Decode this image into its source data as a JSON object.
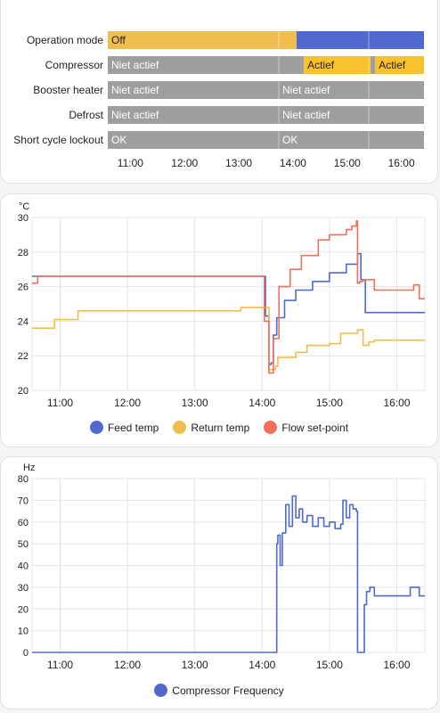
{
  "colors": {
    "off_yellow": "#f0bd4f",
    "blue": "#5069d1",
    "actief_yellow": "#f7c22b",
    "grey": "#9e9e9e",
    "feed": "#5069d1",
    "return": "#f0bd4f",
    "setpoint": "#f0705a",
    "frequency": "#5069d1",
    "grid": "#e4e4e4"
  },
  "timeline": {
    "x_range": [
      "10:35",
      "16:25"
    ],
    "ticks": [
      "11:00",
      "12:00",
      "13:00",
      "14:00",
      "15:00",
      "16:00"
    ],
    "rows": [
      {
        "label": "Operation mode",
        "segments": [
          {
            "start": "10:35",
            "end": "14:04",
            "state": "off_yellow",
            "text": "Off"
          },
          {
            "start": "14:04",
            "end": "16:25",
            "state": "blue",
            "text": ""
          }
        ]
      },
      {
        "label": "Compressor",
        "segments": [
          {
            "start": "10:35",
            "end": "14:12",
            "state": "grey",
            "text": "Niet actief"
          },
          {
            "start": "14:12",
            "end": "15:26",
            "state": "actief_yellow",
            "text": "Actief"
          },
          {
            "start": "15:26",
            "end": "15:31",
            "state": "grey",
            "text": ""
          },
          {
            "start": "15:31",
            "end": "16:25",
            "state": "actief_yellow",
            "text": "Actief"
          }
        ]
      },
      {
        "label": "Booster heater",
        "segments": [
          {
            "start": "10:35",
            "end": "16:25",
            "state": "grey",
            "text": "Niet actief",
            "text2": "Niet actief"
          }
        ]
      },
      {
        "label": "Defrost",
        "segments": [
          {
            "start": "10:35",
            "end": "16:25",
            "state": "grey",
            "text": "Niet actief",
            "text2": "Niet actief"
          }
        ]
      },
      {
        "label": "Short cycle lockout",
        "segments": [
          {
            "start": "10:35",
            "end": "16:25",
            "state": "grey",
            "text": "OK",
            "text2": "OK"
          }
        ]
      }
    ]
  },
  "chart_data": [
    {
      "type": "line",
      "unit": "°C",
      "ylim": [
        20,
        30
      ],
      "yticks": [
        20,
        22,
        24,
        26,
        28,
        30
      ],
      "xlim": [
        "10:35",
        "16:25"
      ],
      "xticks": [
        "11:00",
        "12:00",
        "13:00",
        "14:00",
        "15:00",
        "16:00"
      ],
      "grid": true,
      "legend": "bottom",
      "series": [
        {
          "name": "Feed temp",
          "color": "#5069d1",
          "x": [
            "10:35",
            "11:00",
            "12:00",
            "13:00",
            "13:58",
            "14:03",
            "14:06",
            "14:08",
            "14:10",
            "14:13",
            "14:20",
            "14:30",
            "14:45",
            "15:00",
            "15:15",
            "15:25",
            "15:28",
            "15:32",
            "15:36",
            "15:40",
            "16:00",
            "16:25"
          ],
          "y": [
            26.6,
            26.6,
            26.6,
            26.6,
            26.6,
            24.3,
            21.5,
            21.6,
            23.2,
            24.2,
            25.2,
            25.8,
            26.3,
            26.8,
            27.3,
            27.9,
            26.4,
            24.5,
            24.5,
            24.5,
            24.5,
            24.5
          ]
        },
        {
          "name": "Return temp",
          "color": "#f0bd4f",
          "x": [
            "10:35",
            "10:53",
            "10:55",
            "11:14",
            "11:16",
            "12:00",
            "13:00",
            "13:39",
            "13:41",
            "14:04",
            "14:06",
            "14:12",
            "14:14",
            "14:30",
            "14:40",
            "15:00",
            "15:10",
            "15:25",
            "15:30",
            "15:35",
            "15:40",
            "15:50",
            "16:00",
            "16:25"
          ],
          "y": [
            23.6,
            23.6,
            24.1,
            24.1,
            24.6,
            24.6,
            24.6,
            24.6,
            24.8,
            24.8,
            21.2,
            21.4,
            21.9,
            22.2,
            22.6,
            22.7,
            23.3,
            23.5,
            22.6,
            22.8,
            22.9,
            22.9,
            22.9,
            22.9
          ]
        },
        {
          "name": "Flow set-point",
          "color": "#f0705a",
          "x": [
            "10:35",
            "10:40",
            "11:00",
            "12:00",
            "12:15",
            "13:00",
            "13:58",
            "14:02",
            "14:06",
            "14:10",
            "14:15",
            "14:25",
            "14:35",
            "14:50",
            "15:00",
            "15:15",
            "15:20",
            "15:24",
            "15:25",
            "15:27",
            "15:30",
            "15:40",
            "16:00",
            "16:15",
            "16:20",
            "16:25"
          ],
          "y": [
            26.2,
            26.6,
            26.6,
            26.6,
            26.6,
            26.6,
            26.6,
            24.0,
            21.0,
            23.0,
            26.0,
            27.0,
            27.8,
            28.7,
            29.0,
            29.3,
            29.5,
            29.8,
            26.2,
            26.3,
            26.4,
            25.8,
            25.8,
            26.1,
            25.3,
            25.3
          ]
        }
      ]
    },
    {
      "type": "line",
      "unit": "Hz",
      "ylim": [
        0,
        80
      ],
      "yticks": [
        0,
        10,
        20,
        30,
        40,
        50,
        60,
        70,
        80
      ],
      "xlim": [
        "10:35",
        "16:25"
      ],
      "xticks": [
        "11:00",
        "12:00",
        "13:00",
        "14:00",
        "15:00",
        "16:00"
      ],
      "grid": true,
      "legend": "bottom",
      "series": [
        {
          "name": "Compressor Frequency",
          "color": "#5069d1",
          "x": [
            "10:35",
            "11:00",
            "12:00",
            "13:00",
            "14:00",
            "14:12",
            "14:13",
            "14:14",
            "14:16",
            "14:18",
            "14:21",
            "14:24",
            "14:27",
            "14:30",
            "14:33",
            "14:36",
            "14:40",
            "14:45",
            "14:50",
            "14:55",
            "15:00",
            "15:05",
            "15:10",
            "15:12",
            "15:15",
            "15:18",
            "15:21",
            "15:24",
            "15:25",
            "15:26",
            "15:30",
            "15:31",
            "15:33",
            "15:36",
            "15:40",
            "16:00",
            "16:10",
            "16:12",
            "16:15",
            "16:20",
            "16:25"
          ],
          "y": [
            0,
            0,
            0,
            0,
            0,
            0,
            50,
            54,
            40,
            55,
            68,
            58,
            72,
            62,
            66,
            60,
            63,
            58,
            62,
            58,
            60,
            57,
            59,
            70,
            62,
            68,
            66,
            65,
            0,
            0,
            0,
            22,
            28,
            30,
            26,
            26,
            26,
            30,
            30,
            26,
            26
          ]
        }
      ]
    }
  ]
}
